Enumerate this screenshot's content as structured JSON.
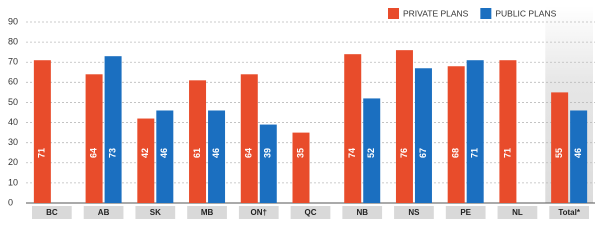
{
  "chart_data": {
    "type": "bar",
    "categories": [
      "BC",
      "AB",
      "SK",
      "MB",
      "ON†",
      "QC",
      "NB",
      "NS",
      "PE",
      "NL",
      "Total*"
    ],
    "series": [
      {
        "name": "PRIVATE PLANS",
        "color": "#e84c2b",
        "values": [
          71,
          64,
          42,
          61,
          64,
          35,
          74,
          76,
          68,
          71,
          55
        ]
      },
      {
        "name": "PUBLIC PLANS",
        "color": "#1b6fc0",
        "values": [
          null,
          73,
          46,
          46,
          39,
          null,
          52,
          67,
          71,
          null,
          46
        ]
      }
    ],
    "ylim": [
      0,
      90
    ],
    "yticks": [
      0,
      10,
      20,
      30,
      40,
      50,
      60,
      70,
      80,
      90
    ],
    "grid": true,
    "legend": "top-right"
  }
}
